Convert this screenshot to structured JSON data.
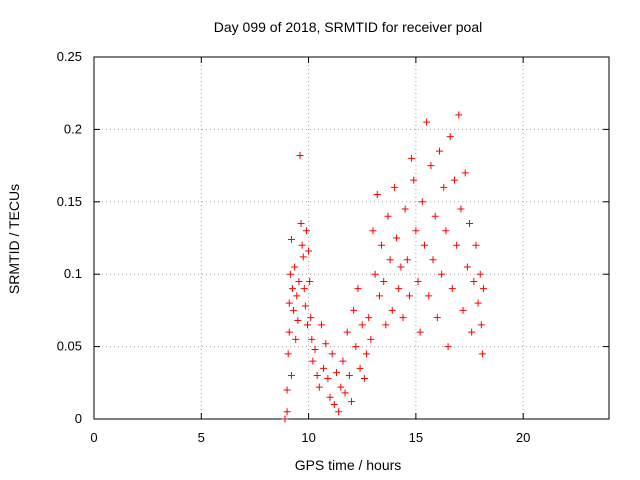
{
  "chart_data": {
    "type": "scatter",
    "title": "Day 099 of 2018, SRMTID for receiver poal",
    "xlabel": "GPS time / hours",
    "ylabel": "SRMTID / TECUs",
    "xlim": [
      0,
      24
    ],
    "ylim": [
      0,
      0.25
    ],
    "xticks": [
      {
        "value": 0,
        "label": "0"
      },
      {
        "value": 5,
        "label": "5"
      },
      {
        "value": 10,
        "label": "10"
      },
      {
        "value": 15,
        "label": "15"
      },
      {
        "value": 20,
        "label": "20"
      }
    ],
    "yticks": [
      {
        "value": 0,
        "label": "0"
      },
      {
        "value": 0.05,
        "label": "0.05"
      },
      {
        "value": 0.1,
        "label": "0.1"
      },
      {
        "value": 0.15,
        "label": "0.15"
      },
      {
        "value": 0.2,
        "label": "0.2"
      },
      {
        "value": 0.25,
        "label": "0.25"
      }
    ],
    "grid": true,
    "marker": "+",
    "color": "#ff0000",
    "series": [
      {
        "name": "SRMTID",
        "points": [
          [
            8.9,
            0.0
          ],
          [
            9.0,
            0.005
          ],
          [
            9.0,
            0.02
          ],
          [
            9.05,
            0.045
          ],
          [
            9.1,
            0.06
          ],
          [
            9.1,
            0.08
          ],
          [
            9.15,
            0.1
          ],
          [
            9.2,
            0.124
          ],
          [
            9.2,
            0.03
          ],
          [
            9.25,
            0.09
          ],
          [
            9.3,
            0.075
          ],
          [
            9.35,
            0.105
          ],
          [
            9.4,
            0.055
          ],
          [
            9.45,
            0.085
          ],
          [
            9.5,
            0.068
          ],
          [
            9.55,
            0.095
          ],
          [
            9.6,
            0.182
          ],
          [
            9.65,
            0.135
          ],
          [
            9.7,
            0.12
          ],
          [
            9.75,
            0.112
          ],
          [
            9.8,
            0.09
          ],
          [
            9.85,
            0.078
          ],
          [
            9.9,
            0.13
          ],
          [
            9.95,
            0.065
          ],
          [
            10.0,
            0.116
          ],
          [
            10.05,
            0.095
          ],
          [
            10.1,
            0.07
          ],
          [
            10.15,
            0.055
          ],
          [
            10.2,
            0.04
          ],
          [
            10.3,
            0.048
          ],
          [
            10.4,
            0.03
          ],
          [
            10.5,
            0.022
          ],
          [
            10.6,
            0.065
          ],
          [
            10.7,
            0.035
          ],
          [
            10.8,
            0.052
          ],
          [
            10.9,
            0.028
          ],
          [
            11.0,
            0.015
          ],
          [
            11.1,
            0.045
          ],
          [
            11.2,
            0.01
          ],
          [
            11.3,
            0.032
          ],
          [
            11.4,
            0.005
          ],
          [
            11.5,
            0.022
          ],
          [
            11.6,
            0.04
          ],
          [
            11.7,
            0.018
          ],
          [
            11.8,
            0.06
          ],
          [
            11.9,
            0.03
          ],
          [
            12.0,
            0.012
          ],
          [
            12.1,
            0.075
          ],
          [
            12.2,
            0.05
          ],
          [
            12.3,
            0.09
          ],
          [
            12.4,
            0.035
          ],
          [
            12.5,
            0.065
          ],
          [
            12.6,
            0.028
          ],
          [
            12.7,
            0.045
          ],
          [
            12.8,
            0.07
          ],
          [
            12.9,
            0.055
          ],
          [
            13.0,
            0.13
          ],
          [
            13.1,
            0.1
          ],
          [
            13.2,
            0.155
          ],
          [
            13.3,
            0.085
          ],
          [
            13.4,
            0.12
          ],
          [
            13.5,
            0.095
          ],
          [
            13.6,
            0.065
          ],
          [
            13.7,
            0.14
          ],
          [
            13.8,
            0.11
          ],
          [
            13.9,
            0.075
          ],
          [
            14.0,
            0.16
          ],
          [
            14.1,
            0.125
          ],
          [
            14.2,
            0.09
          ],
          [
            14.3,
            0.105
          ],
          [
            14.4,
            0.07
          ],
          [
            14.5,
            0.145
          ],
          [
            14.6,
            0.11
          ],
          [
            14.7,
            0.085
          ],
          [
            14.8,
            0.18
          ],
          [
            14.9,
            0.165
          ],
          [
            15.0,
            0.13
          ],
          [
            15.1,
            0.095
          ],
          [
            15.2,
            0.06
          ],
          [
            15.3,
            0.15
          ],
          [
            15.4,
            0.12
          ],
          [
            15.5,
            0.205
          ],
          [
            15.6,
            0.085
          ],
          [
            15.7,
            0.175
          ],
          [
            15.8,
            0.11
          ],
          [
            15.9,
            0.14
          ],
          [
            16.0,
            0.07
          ],
          [
            16.1,
            0.185
          ],
          [
            16.2,
            0.1
          ],
          [
            16.3,
            0.16
          ],
          [
            16.4,
            0.13
          ],
          [
            16.5,
            0.05
          ],
          [
            16.6,
            0.195
          ],
          [
            16.7,
            0.09
          ],
          [
            16.8,
            0.165
          ],
          [
            16.9,
            0.12
          ],
          [
            17.0,
            0.21
          ],
          [
            17.1,
            0.145
          ],
          [
            17.2,
            0.075
          ],
          [
            17.3,
            0.17
          ],
          [
            17.4,
            0.105
          ],
          [
            17.5,
            0.135
          ],
          [
            17.6,
            0.06
          ],
          [
            17.7,
            0.095
          ],
          [
            17.8,
            0.12
          ],
          [
            17.9,
            0.08
          ],
          [
            18.0,
            0.1
          ],
          [
            18.05,
            0.065
          ],
          [
            18.1,
            0.045
          ],
          [
            18.15,
            0.09
          ]
        ]
      }
    ]
  }
}
